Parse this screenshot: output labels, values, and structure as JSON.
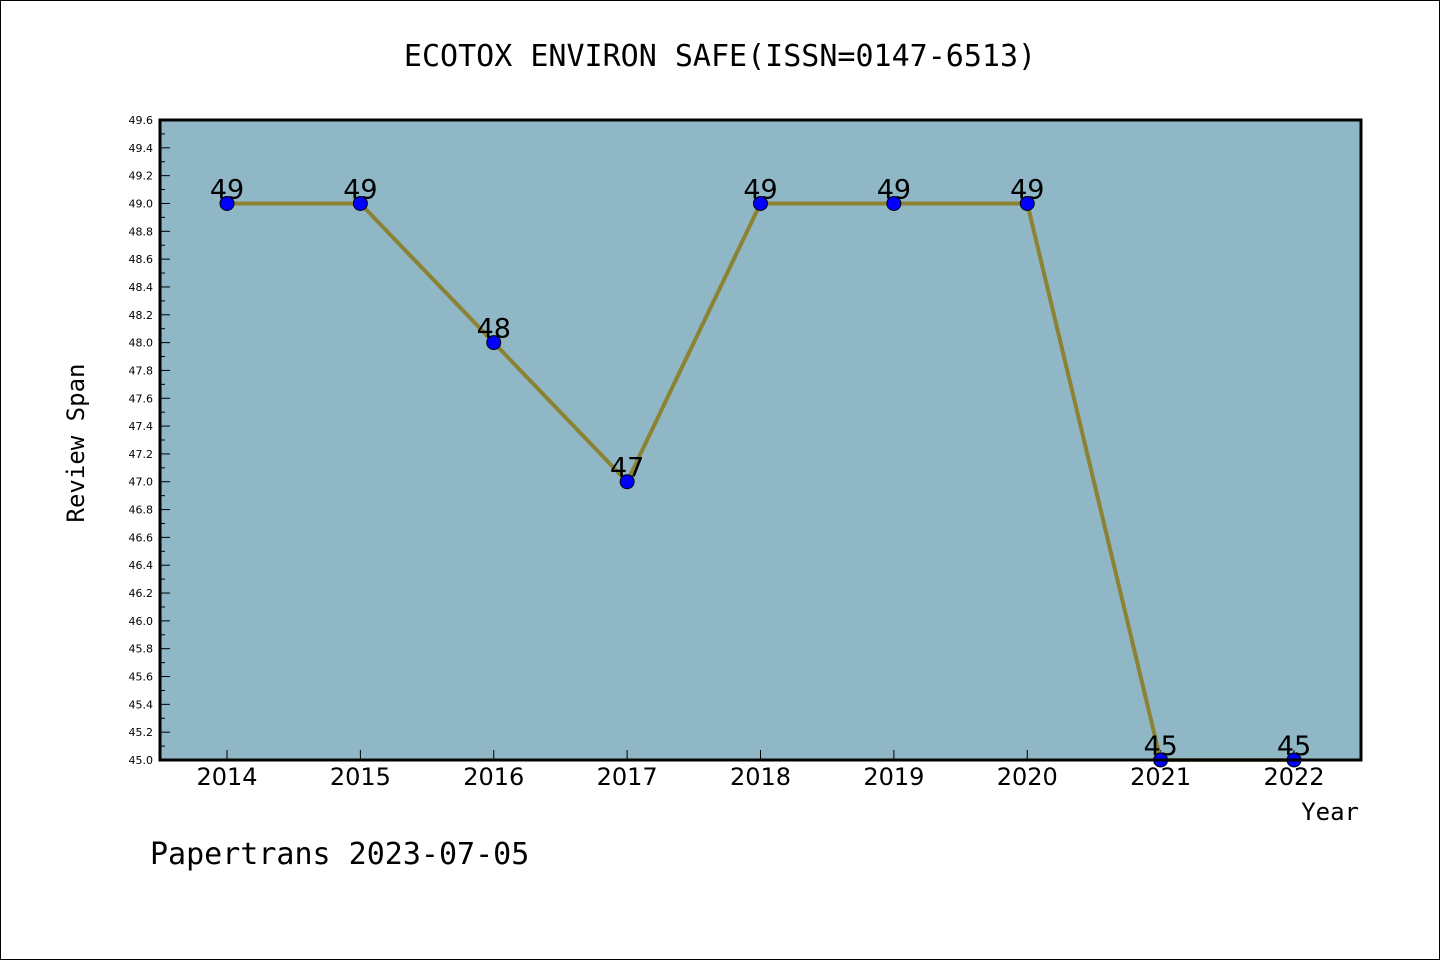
{
  "chart_data": {
    "type": "line",
    "title": "ECOTOX ENVIRON SAFE(ISSN=0147-6513)",
    "xlabel": "Year",
    "ylabel": "Review Span",
    "categories": [
      "2014",
      "2015",
      "2016",
      "2017",
      "2018",
      "2019",
      "2020",
      "2021",
      "2022"
    ],
    "values": [
      49,
      49,
      48,
      47,
      49,
      49,
      49,
      45,
      45
    ],
    "data_labels": [
      "49",
      "49",
      "48",
      "47",
      "49",
      "49",
      "49",
      "45",
      "45"
    ],
    "ylim": [
      45.0,
      49.6
    ],
    "yticks": [
      "45.0",
      "45.2",
      "45.4",
      "45.6",
      "45.8",
      "46.0",
      "46.2",
      "46.4",
      "46.6",
      "46.8",
      "47.0",
      "47.2",
      "47.4",
      "47.6",
      "47.8",
      "48.0",
      "48.2",
      "48.4",
      "48.6",
      "48.8",
      "49.0",
      "49.2",
      "49.4",
      "49.6"
    ],
    "grid": false,
    "colors": {
      "plot_background": "#8fb7c5",
      "line": "#8c8233",
      "marker": "#0000ff"
    }
  },
  "footer": {
    "text": "Papertrans 2023-07-05"
  }
}
